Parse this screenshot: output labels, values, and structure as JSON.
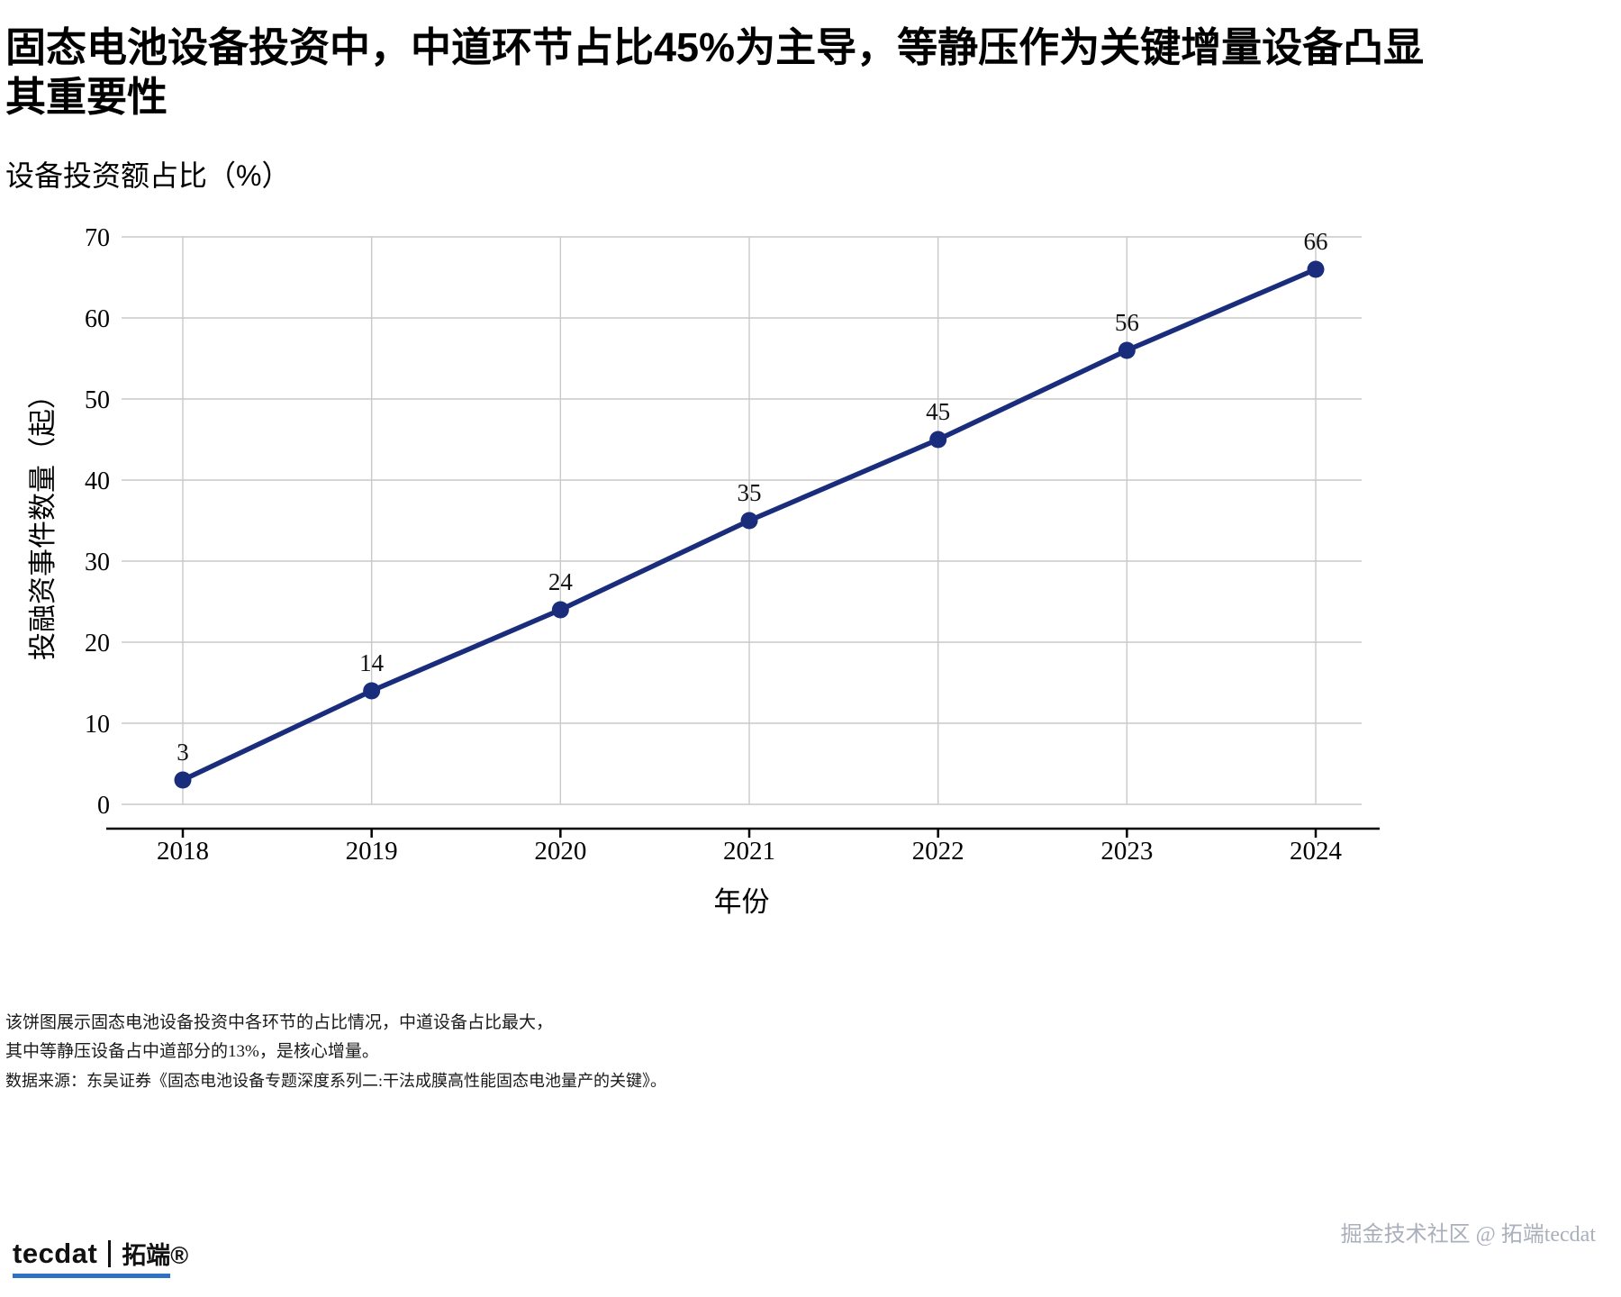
{
  "title": "固态电池设备投资中，中道环节占比45%为主导，等静压作为关键增量设备凸显其重要性",
  "subtitle": "设备投资额占比（%）",
  "chart_data": {
    "type": "line",
    "x": [
      "2018",
      "2019",
      "2020",
      "2021",
      "2022",
      "2023",
      "2024"
    ],
    "values": [
      3,
      14,
      24,
      35,
      45,
      56,
      66
    ],
    "title": "设备投资额占比（%）",
    "xlabel": "年份",
    "ylabel": "投融资事件数量（起）",
    "ylim": [
      0,
      70
    ],
    "yticks": [
      0,
      10,
      20,
      30,
      40,
      50,
      60,
      70
    ],
    "grid": true,
    "legend": "none",
    "line_color": "#1a2d7c",
    "marker_color": "#1a2d7c",
    "grid_color": "#c9c9c9",
    "axis_color": "#000000"
  },
  "footnotes": [
    "该饼图展示固态电池设备投资中各环节的占比情况，中道设备占比最大，",
    "其中等静压设备占中道部分的13%，是核心增量。",
    "数据来源：东吴证券《固态电池设备专题深度系列二:干法成膜高性能固态电池量产的关键》。"
  ],
  "footer": {
    "logo_text": "tecdat",
    "logo_suffix": "拓端®",
    "watermark": "掘金技术社区 @ 拓端tecdat"
  }
}
